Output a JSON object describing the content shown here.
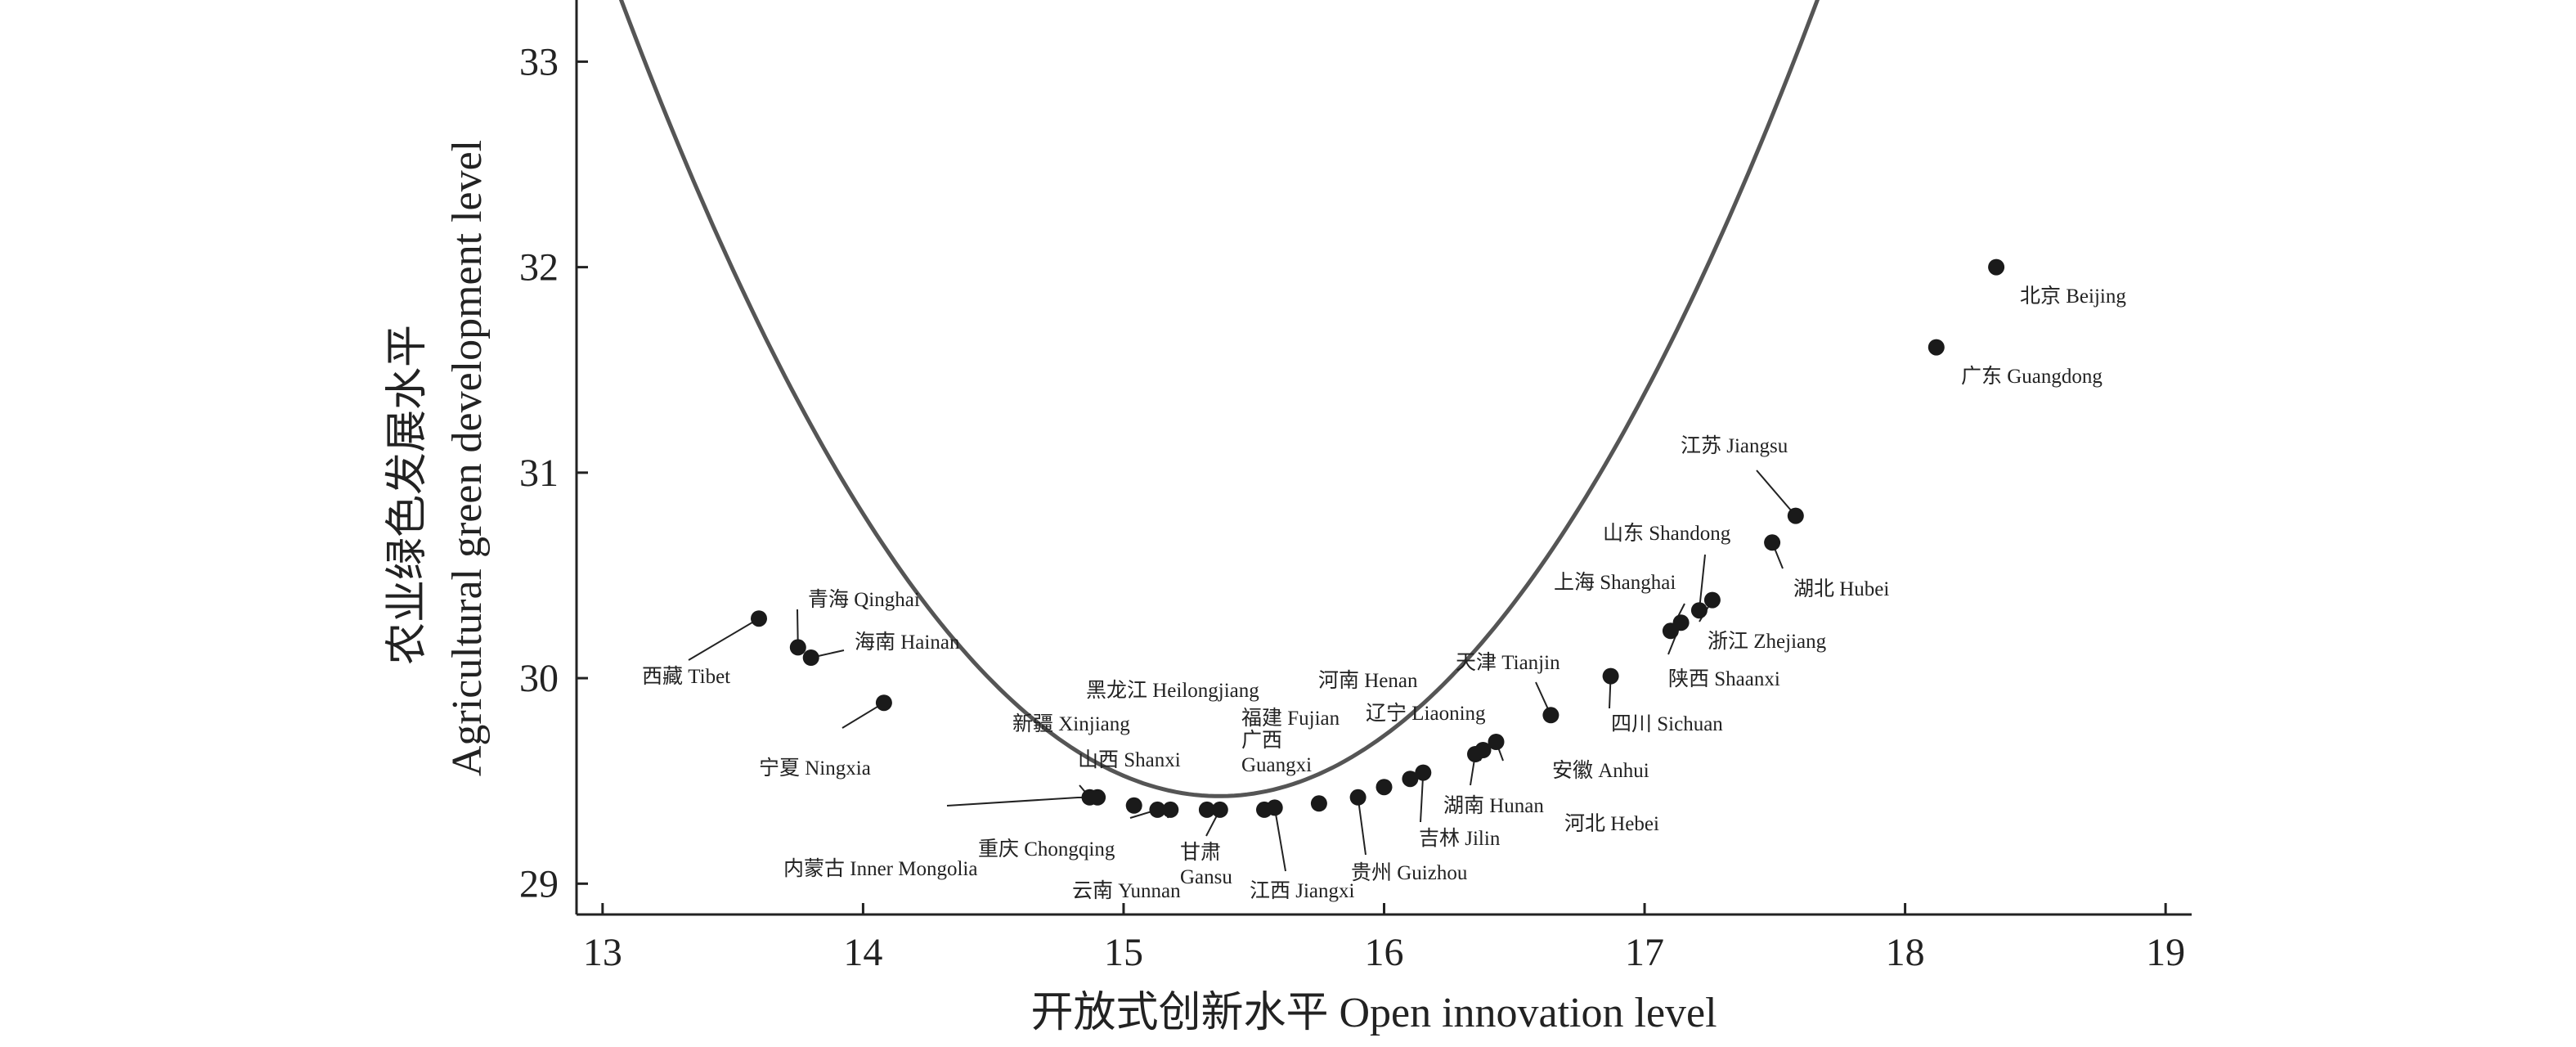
{
  "colors": {
    "curve": "#555555",
    "point": "#1a1a1a",
    "axis": "#222222",
    "text": "#222222"
  },
  "chart_data": {
    "type": "scatter",
    "xlabel": "开放式创新水平 Open innovation level",
    "ylabel_cn": "农业绿色发展水平",
    "ylabel_en": "Agricultural green development level",
    "xlim": [
      12.9,
      19.1
    ],
    "ylim": [
      28.85,
      33.3
    ],
    "x_ticks": [
      13,
      14,
      15,
      16,
      17,
      18,
      19
    ],
    "y_ticks": [
      29,
      30,
      31,
      32,
      33
    ],
    "grid": false,
    "legend": "none",
    "fit_curve": {
      "x_from": 13.0,
      "x_to": 19.0,
      "form": "quadratic",
      "coefficients": [
        0.735,
        -22.59,
        203.0
      ]
    },
    "points": [
      {
        "label": "北京 Beijing",
        "x": 18.35,
        "y": 32.0
      },
      {
        "label": "广东 Guangdong",
        "x": 18.12,
        "y": 31.61
      },
      {
        "label": "江苏 Jiangsu",
        "x": 17.58,
        "y": 30.79
      },
      {
        "label": "湖北 Hubei",
        "x": 17.49,
        "y": 30.66
      },
      {
        "label": "山东 Shandong",
        "x": 17.21,
        "y": 30.33
      },
      {
        "label": "浙江 Zhejiang",
        "x": 17.26,
        "y": 30.38
      },
      {
        "label": "上海 Shanghai",
        "x": 17.1,
        "y": 30.23
      },
      {
        "label": "陕西 Shaanxi",
        "x": 17.14,
        "y": 30.27
      },
      {
        "label": "四川 Sichuan",
        "x": 16.87,
        "y": 30.01
      },
      {
        "label": "天津 Tianjin",
        "x": 16.64,
        "y": 29.82
      },
      {
        "label": "安徽 Anhui",
        "x": 16.43,
        "y": 29.69
      },
      {
        "label": "河北 Hebei",
        "x": 16.38,
        "y": 29.65
      },
      {
        "label": "湖南 Hunan",
        "x": 16.35,
        "y": 29.63
      },
      {
        "label": "吉林 Jilin",
        "x": 16.15,
        "y": 29.54
      },
      {
        "label": "辽宁 Liaoning",
        "x": 16.1,
        "y": 29.51
      },
      {
        "label": "河南 Henan",
        "x": 16.0,
        "y": 29.47
      },
      {
        "label": "贵州 Guizhou",
        "x": 15.9,
        "y": 29.42
      },
      {
        "label": "福建 Fujian",
        "x": 15.75,
        "y": 29.39
      },
      {
        "label": "江西 Jiangxi",
        "x": 15.58,
        "y": 29.37
      },
      {
        "label": "广西 Guangxi",
        "x": 15.54,
        "y": 29.36
      },
      {
        "label": "甘肃 Gansu",
        "x": 15.37,
        "y": 29.36
      },
      {
        "label": "黑龙江 Heilongjiang",
        "x": 15.32,
        "y": 29.36
      },
      {
        "label": "云南 Yunnan",
        "x": 15.18,
        "y": 29.36
      },
      {
        "label": "重庆 Chongqing",
        "x": 15.13,
        "y": 29.36
      },
      {
        "label": "山西 Shanxi",
        "x": 15.04,
        "y": 29.38
      },
      {
        "label": "新疆 Xinjiang",
        "x": 14.87,
        "y": 29.42
      },
      {
        "label": "内蒙古 Inner Mongolia",
        "x": 14.9,
        "y": 29.42
      },
      {
        "label": "宁夏 Ningxia",
        "x": 14.08,
        "y": 29.88
      },
      {
        "label": "海南 Hainan",
        "x": 13.8,
        "y": 30.1
      },
      {
        "label": "青海 Qinghai",
        "x": 13.75,
        "y": 30.15
      },
      {
        "label": "西藏 Tibet",
        "x": 13.6,
        "y": 30.29
      }
    ]
  }
}
